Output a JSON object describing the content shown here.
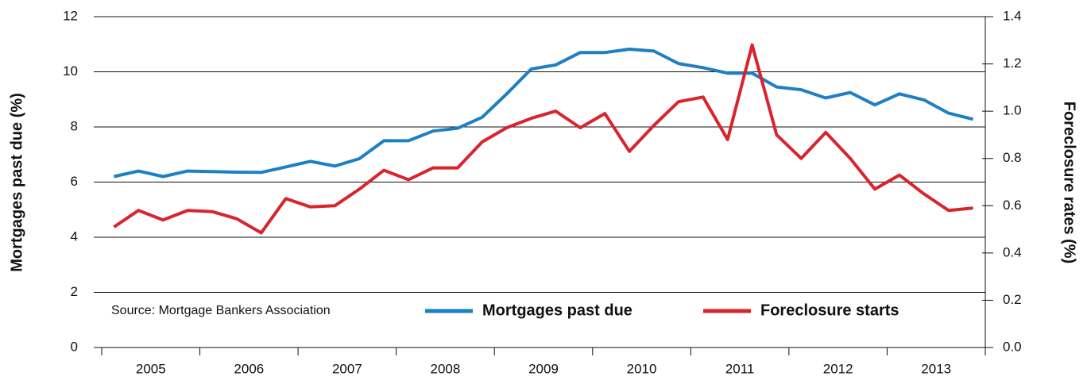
{
  "chart_data": {
    "type": "line",
    "y_label": "Mortgages past due (%)",
    "y2_label": "Foreclosure rates (%)",
    "source": "Source: Mortgage Bankers Association",
    "categories": [
      "2005",
      "2006",
      "2007",
      "2008",
      "2009",
      "2010",
      "2011",
      "2012",
      "2013"
    ],
    "series": [
      {
        "name": "Mortgages past due",
        "color": "#1f7fc4",
        "values": [
          [
            6.2,
            6.4,
            6.2,
            6.4
          ],
          [
            6.38,
            6.36,
            6.35,
            6.55
          ],
          [
            6.75,
            6.58,
            6.85,
            7.5
          ],
          [
            7.5,
            7.85,
            7.95,
            8.35
          ],
          [
            9.2,
            10.1,
            10.25,
            10.7
          ],
          [
            10.7,
            10.82,
            10.75,
            10.3
          ],
          [
            10.15,
            9.95,
            9.95,
            9.45
          ],
          [
            9.35,
            9.05,
            9.25,
            8.8
          ],
          [
            9.2,
            8.98,
            8.5,
            8.28
          ]
        ]
      },
      {
        "name": "Foreclosure starts",
        "color": "#d9242e",
        "axis": "y2",
        "values": [
          [
            0.51,
            0.58,
            0.54,
            0.58
          ],
          [
            0.575,
            0.545,
            0.485,
            0.63
          ],
          [
            0.595,
            0.6,
            0.67,
            0.75
          ],
          [
            0.71,
            0.76,
            0.76,
            0.87
          ],
          [
            0.93,
            0.97,
            1.0,
            0.93
          ],
          [
            0.99,
            0.83,
            0.94,
            1.04
          ],
          [
            1.06,
            0.88,
            1.28,
            0.9
          ],
          [
            0.8,
            0.91,
            0.8,
            0.67
          ],
          [
            0.73,
            0.65,
            0.58,
            0.59
          ]
        ]
      }
    ],
    "ylim": [
      0,
      12
    ],
    "yticks": [
      0,
      2,
      4,
      6,
      8,
      10,
      12
    ],
    "y2lim": [
      0,
      1.4
    ],
    "y2ticks": [
      {
        "value": 0,
        "label": "0.0"
      },
      0.2,
      0.4,
      0.6,
      0.8,
      {
        "value": 1,
        "label": "1.0"
      },
      1.2,
      1.4
    ],
    "grid": true
  }
}
